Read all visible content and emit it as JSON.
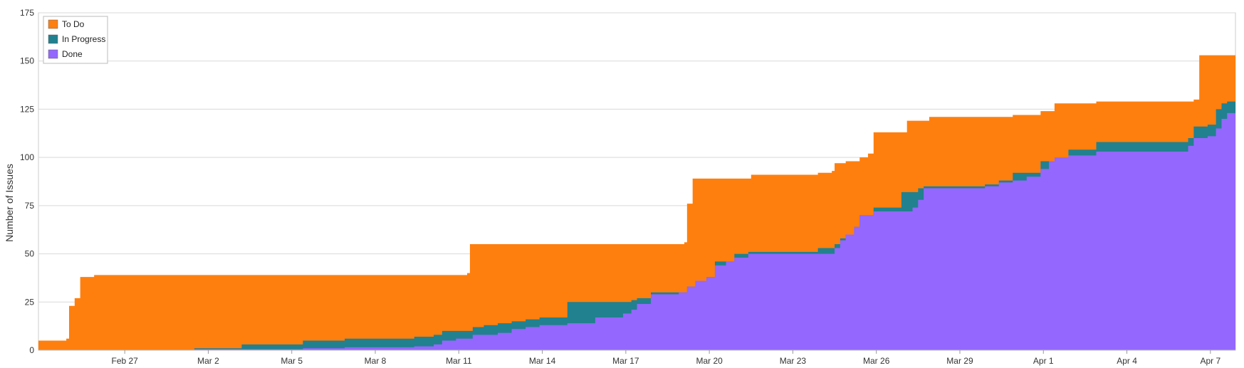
{
  "chart_data": {
    "type": "area",
    "stacked": true,
    "title": "",
    "xlabel": "",
    "ylabel": "Number of Issues",
    "ylim": [
      0,
      175
    ],
    "yticks": [
      0,
      25,
      50,
      75,
      100,
      125,
      150,
      175
    ],
    "xlim": [
      "Feb 24",
      "Apr 8"
    ],
    "xticks": [
      {
        "label": "Feb 27",
        "day": 3.1
      },
      {
        "label": "Mar 2",
        "day": 6.1
      },
      {
        "label": "Mar 5",
        "day": 9.1
      },
      {
        "label": "Mar 8",
        "day": 12.1
      },
      {
        "label": "Mar 11",
        "day": 15.1
      },
      {
        "label": "Mar 14",
        "day": 18.1
      },
      {
        "label": "Mar 17",
        "day": 21.1
      },
      {
        "label": "Mar 20",
        "day": 24.1
      },
      {
        "label": "Mar 23",
        "day": 27.1
      },
      {
        "label": "Mar 26",
        "day": 30.1
      },
      {
        "label": "Mar 29",
        "day": 33.1
      },
      {
        "label": "Apr 1",
        "day": 36.1
      },
      {
        "label": "Apr 4",
        "day": 39.1
      },
      {
        "label": "Apr 7",
        "day": 42.1
      }
    ],
    "grid": true,
    "legend_position": "top-left",
    "colors": {
      "To Do": "#ff7f0e",
      "In Progress": "#21818f",
      "Done": "#9467ff"
    },
    "series": [
      {
        "name": "Done",
        "points": [
          [
            0,
            0
          ],
          [
            5.5,
            0
          ],
          [
            5.6,
            0.5
          ],
          [
            7.3,
            0.5
          ],
          [
            9.5,
            1
          ],
          [
            11,
            1.5
          ],
          [
            13.5,
            2
          ],
          [
            14.2,
            3
          ],
          [
            14.5,
            5
          ],
          [
            15,
            6
          ],
          [
            15.5,
            6
          ],
          [
            15.6,
            8
          ],
          [
            16,
            8
          ],
          [
            16.5,
            9
          ],
          [
            17,
            11
          ],
          [
            17.5,
            12
          ],
          [
            18,
            13
          ],
          [
            19,
            14
          ],
          [
            20,
            17
          ],
          [
            21,
            19
          ],
          [
            21.3,
            21
          ],
          [
            21.5,
            24
          ],
          [
            22,
            29
          ],
          [
            23,
            30
          ],
          [
            23.3,
            33
          ],
          [
            23.6,
            36
          ],
          [
            24,
            38
          ],
          [
            24.3,
            44
          ],
          [
            24.7,
            46
          ],
          [
            25,
            48
          ],
          [
            25.5,
            50
          ],
          [
            27,
            50
          ],
          [
            28,
            50
          ],
          [
            28.6,
            53
          ],
          [
            28.8,
            57
          ],
          [
            29,
            60
          ],
          [
            29.3,
            64
          ],
          [
            29.5,
            70
          ],
          [
            30,
            72
          ],
          [
            31,
            72
          ],
          [
            31.4,
            74
          ],
          [
            31.6,
            78
          ],
          [
            31.8,
            84
          ],
          [
            33,
            84
          ],
          [
            34,
            85
          ],
          [
            34.5,
            87
          ],
          [
            35,
            88
          ],
          [
            35.5,
            90
          ],
          [
            36,
            94
          ],
          [
            36.3,
            98
          ],
          [
            36.5,
            100
          ],
          [
            37,
            101
          ],
          [
            38,
            103
          ],
          [
            39,
            103
          ],
          [
            41,
            103
          ],
          [
            41.3,
            106
          ],
          [
            41.5,
            110
          ],
          [
            42,
            111
          ],
          [
            42.3,
            115
          ],
          [
            42.5,
            120
          ],
          [
            42.7,
            123
          ]
        ]
      },
      {
        "name": "In Progress",
        "points": [
          [
            0,
            0
          ],
          [
            5.5,
            0
          ],
          [
            5.6,
            1
          ],
          [
            7.3,
            3
          ],
          [
            9.5,
            5
          ],
          [
            11,
            6
          ],
          [
            13.5,
            7
          ],
          [
            14.2,
            8
          ],
          [
            14.5,
            10
          ],
          [
            15,
            10
          ],
          [
            15.5,
            10
          ],
          [
            15.6,
            12
          ],
          [
            16,
            13
          ],
          [
            16.5,
            14
          ],
          [
            17,
            15
          ],
          [
            17.5,
            16
          ],
          [
            18,
            17
          ],
          [
            19,
            17
          ],
          [
            19,
            25
          ],
          [
            20,
            25
          ],
          [
            21,
            25
          ],
          [
            21.3,
            26
          ],
          [
            21.5,
            27
          ],
          [
            22,
            30
          ],
          [
            23,
            30
          ],
          [
            23.3,
            33
          ],
          [
            23.6,
            36
          ],
          [
            24,
            38
          ],
          [
            24.3,
            46
          ],
          [
            24.7,
            46
          ],
          [
            25,
            50
          ],
          [
            25.5,
            51
          ],
          [
            27,
            51
          ],
          [
            28,
            53
          ],
          [
            28.6,
            55
          ],
          [
            28.8,
            58
          ],
          [
            29,
            60
          ],
          [
            29.3,
            64
          ],
          [
            29.5,
            70
          ],
          [
            30,
            74
          ],
          [
            31,
            82
          ],
          [
            31.4,
            82
          ],
          [
            31.6,
            84
          ],
          [
            31.8,
            85
          ],
          [
            33,
            85
          ],
          [
            34,
            86
          ],
          [
            34.5,
            88
          ],
          [
            35,
            92
          ],
          [
            35.5,
            92
          ],
          [
            36,
            98
          ],
          [
            36.3,
            98
          ],
          [
            36.5,
            98
          ],
          [
            37,
            104
          ],
          [
            38,
            108
          ],
          [
            39,
            108
          ],
          [
            41,
            108
          ],
          [
            41.3,
            110
          ],
          [
            41.5,
            116
          ],
          [
            42,
            117
          ],
          [
            42.3,
            125
          ],
          [
            42.5,
            128
          ],
          [
            42.7,
            129
          ]
        ]
      },
      {
        "name": "To Do",
        "points": [
          [
            0,
            5
          ],
          [
            1,
            6
          ],
          [
            1.1,
            23
          ],
          [
            1.3,
            27
          ],
          [
            1.5,
            38
          ],
          [
            2,
            39
          ],
          [
            10,
            39
          ],
          [
            14,
            39
          ],
          [
            15.4,
            40
          ],
          [
            15.5,
            55
          ],
          [
            20,
            55
          ],
          [
            21,
            55
          ],
          [
            22.5,
            55
          ],
          [
            23.2,
            56
          ],
          [
            23.3,
            76
          ],
          [
            23.5,
            89
          ],
          [
            25.5,
            89
          ],
          [
            25.6,
            91
          ],
          [
            28,
            92
          ],
          [
            28.5,
            93
          ],
          [
            28.6,
            97
          ],
          [
            29,
            98
          ],
          [
            29.5,
            100
          ],
          [
            29.8,
            102
          ],
          [
            30,
            113
          ],
          [
            31,
            113
          ],
          [
            31.2,
            119
          ],
          [
            32,
            121
          ],
          [
            33,
            121
          ],
          [
            34,
            121
          ],
          [
            35,
            122
          ],
          [
            36,
            124
          ],
          [
            36.5,
            128
          ],
          [
            37,
            128
          ],
          [
            38,
            129
          ],
          [
            39,
            129
          ],
          [
            40,
            129
          ],
          [
            41.5,
            130
          ],
          [
            41.7,
            153
          ],
          [
            43,
            153
          ]
        ]
      }
    ]
  }
}
